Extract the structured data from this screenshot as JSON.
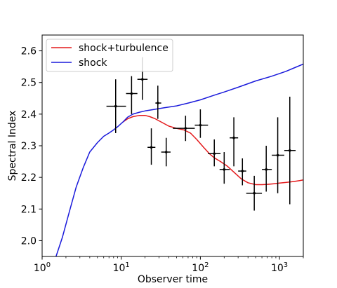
{
  "chart_data": {
    "type": "line",
    "xscale": "log",
    "xlim": [
      1,
      2000
    ],
    "ylim": [
      1.95,
      2.65
    ],
    "xlabel": "Observer time",
    "ylabel": "Spectral Index",
    "x_ticks": [
      {
        "value": 1,
        "base": "10",
        "exp": "0"
      },
      {
        "value": 10,
        "base": "10",
        "exp": "1"
      },
      {
        "value": 100,
        "base": "10",
        "exp": "2"
      },
      {
        "value": 1000,
        "base": "10",
        "exp": "3"
      }
    ],
    "y_ticks": [
      {
        "value": 2.0,
        "label": "2.0"
      },
      {
        "value": 2.1,
        "label": "2.1"
      },
      {
        "value": 2.2,
        "label": "2.2"
      },
      {
        "value": 2.3,
        "label": "2.3"
      },
      {
        "value": 2.4,
        "label": "2.4"
      },
      {
        "value": 2.5,
        "label": "2.5"
      },
      {
        "value": 2.6,
        "label": "2.6"
      }
    ],
    "legend_position": "top-left",
    "series": [
      {
        "name": "shock+turbulence",
        "color": "#e41a1c",
        "x": [
          10.5,
          12,
          14,
          17,
          20,
          23,
          27,
          32,
          40,
          50,
          62,
          75,
          90,
          110,
          130,
          150,
          180,
          220,
          270,
          330,
          400,
          500,
          600,
          700,
          850,
          1000,
          1200,
          1400,
          1600,
          1800,
          2000
        ],
        "y": [
          2.375,
          2.385,
          2.392,
          2.396,
          2.396,
          2.392,
          2.385,
          2.375,
          2.362,
          2.355,
          2.35,
          2.34,
          2.32,
          2.295,
          2.275,
          2.262,
          2.25,
          2.235,
          2.215,
          2.195,
          2.183,
          2.177,
          2.177,
          2.178,
          2.18,
          2.182,
          2.184,
          2.186,
          2.188,
          2.19,
          2.192
        ]
      },
      {
        "name": "shock",
        "color": "#1a1adb",
        "x": [
          1.5,
          1.8,
          2.2,
          2.7,
          3.3,
          4.0,
          5.0,
          6.0,
          7.0,
          8.0,
          9.0,
          10.5,
          12,
          14,
          17,
          20,
          25,
          35,
          50,
          70,
          100,
          150,
          200,
          300,
          500,
          800,
          1200,
          1600,
          2000
        ],
        "y": [
          1.95,
          2.01,
          2.09,
          2.17,
          2.23,
          2.28,
          2.31,
          2.33,
          2.34,
          2.35,
          2.36,
          2.375,
          2.39,
          2.4,
          2.406,
          2.41,
          2.414,
          2.42,
          2.426,
          2.435,
          2.445,
          2.46,
          2.47,
          2.485,
          2.505,
          2.52,
          2.535,
          2.548,
          2.558
        ]
      }
    ],
    "observations": [
      {
        "x": 8.5,
        "y": 2.425,
        "x_lo": 6.5,
        "x_hi": 11.5,
        "y_lo": 2.34,
        "y_hi": 2.51
      },
      {
        "x": 13.5,
        "y": 2.465,
        "x_lo": 11.5,
        "x_hi": 16.0,
        "y_lo": 2.4,
        "y_hi": 2.52
      },
      {
        "x": 18.5,
        "y": 2.51,
        "x_lo": 16.0,
        "x_hi": 21.5,
        "y_lo": 2.445,
        "y_hi": 2.58
      },
      {
        "x": 24,
        "y": 2.295,
        "x_lo": 21.5,
        "x_hi": 27.0,
        "y_lo": 2.24,
        "y_hi": 2.355
      },
      {
        "x": 29,
        "y": 2.435,
        "x_lo": 27.0,
        "x_hi": 32.0,
        "y_lo": 2.385,
        "y_hi": 2.49
      },
      {
        "x": 37,
        "y": 2.28,
        "x_lo": 32.0,
        "x_hi": 42.0,
        "y_lo": 2.235,
        "y_hi": 2.325
      },
      {
        "x": 65,
        "y": 2.355,
        "x_lo": 45.0,
        "x_hi": 85.0,
        "y_lo": 2.315,
        "y_hi": 2.395
      },
      {
        "x": 100,
        "y": 2.365,
        "x_lo": 85.0,
        "x_hi": 125.0,
        "y_lo": 2.325,
        "y_hi": 2.415
      },
      {
        "x": 150,
        "y": 2.275,
        "x_lo": 125.0,
        "x_hi": 180.0,
        "y_lo": 2.235,
        "y_hi": 2.32
      },
      {
        "x": 200,
        "y": 2.225,
        "x_lo": 175.0,
        "x_hi": 235.0,
        "y_lo": 2.18,
        "y_hi": 2.28
      },
      {
        "x": 265,
        "y": 2.325,
        "x_lo": 235.0,
        "x_hi": 300.0,
        "y_lo": 2.235,
        "y_hi": 2.39
      },
      {
        "x": 340,
        "y": 2.22,
        "x_lo": 300.0,
        "x_hi": 380.0,
        "y_lo": 2.175,
        "y_hi": 2.26
      },
      {
        "x": 480,
        "y": 2.15,
        "x_lo": 380.0,
        "x_hi": 600.0,
        "y_lo": 2.095,
        "y_hi": 2.205
      },
      {
        "x": 680,
        "y": 2.225,
        "x_lo": 600.0,
        "x_hi": 800.0,
        "y_lo": 2.155,
        "y_hi": 2.3
      },
      {
        "x": 950,
        "y": 2.27,
        "x_lo": 800.0,
        "x_hi": 1150.0,
        "y_lo": 2.15,
        "y_hi": 2.39
      },
      {
        "x": 1350,
        "y": 2.285,
        "x_lo": 1150.0,
        "x_hi": 1600.0,
        "y_lo": 2.115,
        "y_hi": 2.455
      }
    ]
  }
}
